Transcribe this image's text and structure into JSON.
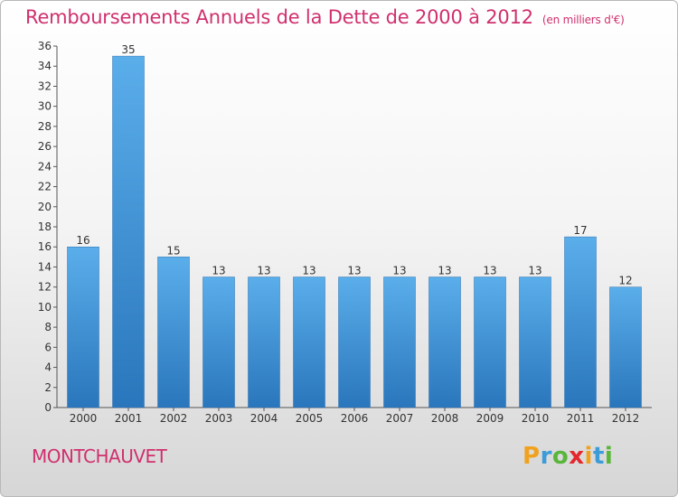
{
  "chart_data": {
    "type": "bar",
    "title": "Remboursements Annuels de la Dette de 2000 à 2012",
    "subtitle": "(en milliers d'€)",
    "categories": [
      "2000",
      "2001",
      "2002",
      "2003",
      "2004",
      "2005",
      "2006",
      "2007",
      "2008",
      "2009",
      "2010",
      "2011",
      "2012"
    ],
    "values": [
      16,
      35,
      15,
      13,
      13,
      13,
      13,
      13,
      13,
      13,
      13,
      17,
      12
    ],
    "ylim": [
      0,
      36
    ],
    "yticks": [
      0,
      2,
      4,
      6,
      8,
      10,
      12,
      14,
      16,
      18,
      20,
      22,
      24,
      26,
      28,
      30,
      32,
      34,
      36
    ],
    "grid": false,
    "bar_color": "#3f8fd6"
  },
  "footer": {
    "city": "MONTCHAUVET",
    "brand": {
      "letters": [
        "P",
        "r",
        "o",
        "x",
        "i",
        "t",
        "i"
      ],
      "colors": [
        "#f0a21e",
        "#3c9cd8",
        "#59b63a",
        "#e4262d",
        "#f0a21e",
        "#3c9cd8",
        "#59b63a"
      ]
    }
  }
}
